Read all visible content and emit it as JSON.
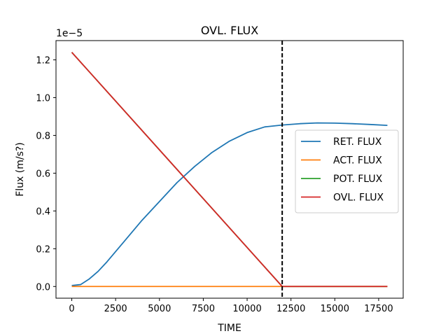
{
  "chart_data": {
    "type": "line",
    "title": "OVL. FLUX",
    "xlabel": "TIME",
    "ylabel": "Flux (m/s?)",
    "y_offset_label": "1e−5",
    "xlim": [
      -900,
      18900
    ],
    "ylim": [
      -0.062,
      1.302
    ],
    "x_ticks": [
      0,
      2500,
      5000,
      7500,
      10000,
      12500,
      15000,
      17500
    ],
    "x_tick_labels": [
      "0",
      "2500",
      "5000",
      "7500",
      "10000",
      "12500",
      "15000",
      "17500"
    ],
    "y_ticks": [
      0.0,
      0.2,
      0.4,
      0.6,
      0.8,
      1.0,
      1.2
    ],
    "y_tick_labels": [
      "0.0",
      "0.2",
      "0.4",
      "0.6",
      "0.8",
      "1.0",
      "1.2"
    ],
    "grid": false,
    "legend_position": "center-right",
    "vline": {
      "x": 12000,
      "style": "dashed",
      "color": "#000000"
    },
    "series": [
      {
        "name": "RET. FLUX",
        "color": "#1f77b4",
        "x": [
          0,
          500,
          1000,
          1500,
          2000,
          3000,
          4000,
          5000,
          6000,
          7000,
          8000,
          9000,
          10000,
          11000,
          12000,
          13000,
          14000,
          15000,
          16000,
          17000,
          18000
        ],
        "y": [
          0.005,
          0.01,
          0.04,
          0.08,
          0.13,
          0.24,
          0.35,
          0.45,
          0.55,
          0.635,
          0.71,
          0.77,
          0.815,
          0.845,
          0.855,
          0.862,
          0.866,
          0.865,
          0.862,
          0.858,
          0.853
        ]
      },
      {
        "name": "ACT. FLUX",
        "color": "#ff7f0e",
        "x": [
          0,
          18000
        ],
        "y": [
          0.0,
          0.0
        ]
      },
      {
        "name": "POT. FLUX",
        "color": "#2ca02c",
        "x": [
          0,
          12000,
          18000
        ],
        "y": [
          1.24,
          0.0,
          0.0
        ]
      },
      {
        "name": "OVL. FLUX",
        "color": "#d62728",
        "x": [
          0,
          12000,
          18000
        ],
        "y": [
          1.24,
          0.0,
          0.0
        ]
      }
    ]
  }
}
